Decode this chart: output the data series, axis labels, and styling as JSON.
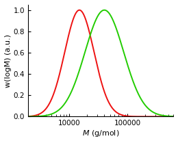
{
  "title": "",
  "xlabel_unit": " (g/mol)",
  "ylabel": "w(logM) (a.u.)",
  "red_peak_Mn": 15000,
  "red_sigma": 0.25,
  "green_peak_Mn": 40000,
  "green_sigma": 0.33,
  "red_color": "#ee1111",
  "green_color": "#22cc00",
  "xmin": 2000,
  "xmax": 600000,
  "ymin": 0.0,
  "ymax": 1.05,
  "yticks": [
    0.0,
    0.2,
    0.4,
    0.6,
    0.8,
    1.0
  ],
  "xticks": [
    10000,
    100000
  ],
  "xticklabels": [
    "10000",
    "100000"
  ],
  "linewidth": 1.4,
  "figwidth": 2.6,
  "figheight": 2.09,
  "dpi": 100
}
